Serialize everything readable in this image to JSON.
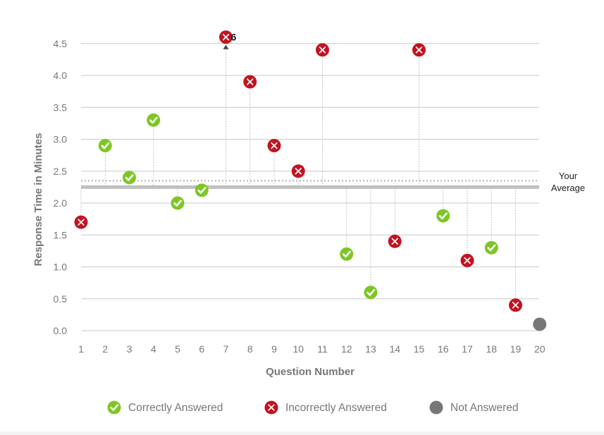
{
  "chart_data": {
    "type": "scatter",
    "xlabel": "Question Number",
    "ylabel": "Response Time in Minutes",
    "ylim": [
      0,
      4.5
    ],
    "yticks": [
      0,
      0.5,
      1,
      1.5,
      2,
      2.5,
      3,
      3.5,
      4,
      4.5
    ],
    "ytick_labels": [
      "0.0",
      "0.5",
      "1.0",
      "1.5",
      "2.0",
      "2.5",
      "3.0",
      "3.5",
      "4.0",
      "4.5"
    ],
    "categories": [
      "1",
      "2",
      "3",
      "4",
      "5",
      "6",
      "7",
      "8",
      "9",
      "10",
      "11",
      "12",
      "13",
      "14",
      "15",
      "16",
      "17",
      "18",
      "19",
      "20"
    ],
    "average": 2.25,
    "reference_line": 2.35,
    "average_label_lines": [
      "Your",
      "Average"
    ],
    "points": [
      {
        "q": 1,
        "value": 1.7,
        "status": "incorrect"
      },
      {
        "q": 2,
        "value": 2.9,
        "status": "correct"
      },
      {
        "q": 3,
        "value": 2.4,
        "status": "correct"
      },
      {
        "q": 4,
        "value": 3.3,
        "status": "correct"
      },
      {
        "q": 5,
        "value": 2.0,
        "status": "correct"
      },
      {
        "q": 6,
        "value": 2.2,
        "status": "correct"
      },
      {
        "q": 7,
        "value": 4.6,
        "status": "incorrect",
        "clipped": true,
        "label": "6"
      },
      {
        "q": 8,
        "value": 3.9,
        "status": "incorrect"
      },
      {
        "q": 9,
        "value": 2.9,
        "status": "incorrect"
      },
      {
        "q": 10,
        "value": 2.5,
        "status": "incorrect"
      },
      {
        "q": 11,
        "value": 4.4,
        "status": "incorrect"
      },
      {
        "q": 12,
        "value": 1.2,
        "status": "correct"
      },
      {
        "q": 13,
        "value": 0.6,
        "status": "correct"
      },
      {
        "q": 14,
        "value": 1.4,
        "status": "incorrect"
      },
      {
        "q": 15,
        "value": 4.4,
        "status": "incorrect"
      },
      {
        "q": 16,
        "value": 1.8,
        "status": "correct"
      },
      {
        "q": 17,
        "value": 1.1,
        "status": "incorrect"
      },
      {
        "q": 18,
        "value": 1.3,
        "status": "correct"
      },
      {
        "q": 19,
        "value": 0.4,
        "status": "incorrect"
      },
      {
        "q": 20,
        "value": 0.1,
        "status": "not_answered"
      }
    ],
    "legend": [
      {
        "key": "correct",
        "label": "Correctly Answered",
        "icon": "check-icon"
      },
      {
        "key": "incorrect",
        "label": "Incorrectly Answered",
        "icon": "x-icon"
      },
      {
        "key": "not_answered",
        "label": "Not Answered",
        "icon": "dot-icon"
      }
    ],
    "colors": {
      "correct": "#7dc724",
      "incorrect": "#c4121f",
      "not_answered": "#777777",
      "grid": "#c8c8c8",
      "average": "#c0c0c0",
      "reference": "#b0b0b0",
      "text": "#777777",
      "label_dark": "#333333"
    }
  }
}
